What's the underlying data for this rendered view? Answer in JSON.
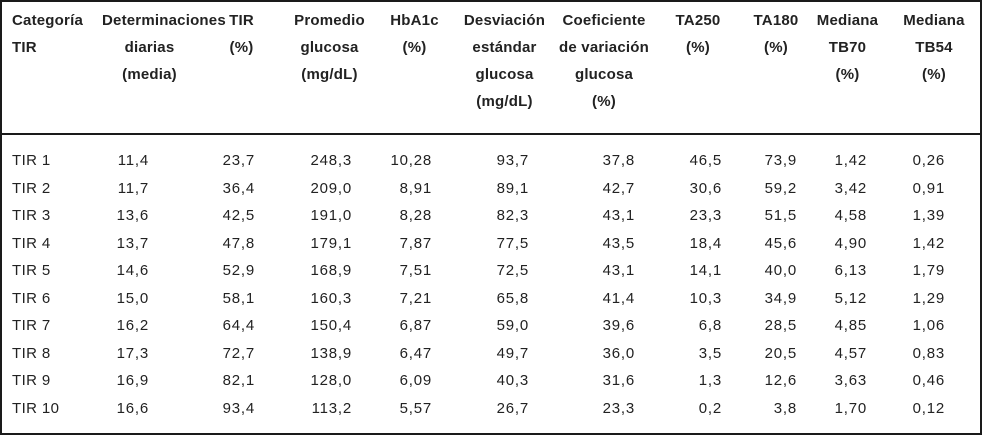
{
  "colors": {
    "text": "#222222",
    "border": "#1a1a1a",
    "background": "#ffffff"
  },
  "table": {
    "columns": [
      {
        "id": "categoria-tir",
        "lines": [
          "Categoría",
          "TIR"
        ]
      },
      {
        "id": "determinaciones-diarias",
        "lines": [
          "Determinaciones",
          "diarias",
          "(media)"
        ]
      },
      {
        "id": "tir-pct",
        "lines": [
          "TIR",
          "(%)"
        ]
      },
      {
        "id": "promedio-glucosa",
        "lines": [
          "Promedio",
          "glucosa",
          "(mg/dL)"
        ]
      },
      {
        "id": "hba1c",
        "lines": [
          "HbA1c",
          "(%)"
        ]
      },
      {
        "id": "desviacion-estandar-glucosa",
        "lines": [
          "Desviación",
          "estándar",
          "glucosa",
          "(mg/dL)"
        ]
      },
      {
        "id": "coeficiente-variacion-glucosa",
        "lines": [
          "Coeficiente",
          "de variación",
          "glucosa",
          "(%)"
        ]
      },
      {
        "id": "ta250",
        "lines": [
          "TA250",
          "(%)"
        ]
      },
      {
        "id": "ta180",
        "lines": [
          "TA180",
          "(%)"
        ]
      },
      {
        "id": "mediana-tb70",
        "lines": [
          "Mediana",
          "TB70",
          "(%)"
        ]
      },
      {
        "id": "mediana-tb54",
        "lines": [
          "Mediana",
          "TB54",
          "(%)"
        ]
      }
    ],
    "rows": [
      {
        "label": "TIR 1",
        "values": [
          "11,4",
          "23,7",
          "248,3",
          "10,28",
          "93,7",
          "37,8",
          "46,5",
          "73,9",
          "1,42",
          "0,26"
        ]
      },
      {
        "label": "TIR 2",
        "values": [
          "11,7",
          "36,4",
          "209,0",
          "8,91",
          "89,1",
          "42,7",
          "30,6",
          "59,2",
          "3,42",
          "0,91"
        ]
      },
      {
        "label": "TIR 3",
        "values": [
          "13,6",
          "42,5",
          "191,0",
          "8,28",
          "82,3",
          "43,1",
          "23,3",
          "51,5",
          "4,58",
          "1,39"
        ]
      },
      {
        "label": "TIR 4",
        "values": [
          "13,7",
          "47,8",
          "179,1",
          "7,87",
          "77,5",
          "43,5",
          "18,4",
          "45,6",
          "4,90",
          "1,42"
        ]
      },
      {
        "label": "TIR 5",
        "values": [
          "14,6",
          "52,9",
          "168,9",
          "7,51",
          "72,5",
          "43,1",
          "14,1",
          "40,0",
          "6,13",
          "1,79"
        ]
      },
      {
        "label": "TIR 6",
        "values": [
          "15,0",
          "58,1",
          "160,3",
          "7,21",
          "65,8",
          "41,4",
          "10,3",
          "34,9",
          "5,12",
          "1,29"
        ]
      },
      {
        "label": "TIR 7",
        "values": [
          "16,2",
          "64,4",
          "150,4",
          "6,87",
          "59,0",
          "39,6",
          "6,8",
          "28,5",
          "4,85",
          "1,06"
        ]
      },
      {
        "label": "TIR 8",
        "values": [
          "17,3",
          "72,7",
          "138,9",
          "6,47",
          "49,7",
          "36,0",
          "3,5",
          "20,5",
          "4,57",
          "0,83"
        ]
      },
      {
        "label": "TIR 9",
        "values": [
          "16,9",
          "82,1",
          "128,0",
          "6,09",
          "40,3",
          "31,6",
          "1,3",
          "12,6",
          "3,63",
          "0,46"
        ]
      },
      {
        "label": "TIR 10",
        "values": [
          "16,6",
          "93,4",
          "113,2",
          "5,57",
          "26,7",
          "23,3",
          "0,2",
          "3,8",
          "1,70",
          "0,12"
        ]
      }
    ]
  },
  "chart_data": {
    "type": "table",
    "decimal_separator_displayed": ",",
    "columns": [
      "Categoría TIR",
      "Determinaciones diarias (media)",
      "TIR (%)",
      "Promedio glucosa (mg/dL)",
      "HbA1c (%)",
      "Desviación estándar glucosa (mg/dL)",
      "Coeficiente de variación glucosa (%)",
      "TA250 (%)",
      "TA180 (%)",
      "Mediana TB70 (%)",
      "Mediana TB54 (%)"
    ],
    "rows": [
      [
        "TIR 1",
        11.4,
        23.7,
        248.3,
        10.28,
        93.7,
        37.8,
        46.5,
        73.9,
        1.42,
        0.26
      ],
      [
        "TIR 2",
        11.7,
        36.4,
        209.0,
        8.91,
        89.1,
        42.7,
        30.6,
        59.2,
        3.42,
        0.91
      ],
      [
        "TIR 3",
        13.6,
        42.5,
        191.0,
        8.28,
        82.3,
        43.1,
        23.3,
        51.5,
        4.58,
        1.39
      ],
      [
        "TIR 4",
        13.7,
        47.8,
        179.1,
        7.87,
        77.5,
        43.5,
        18.4,
        45.6,
        4.9,
        1.42
      ],
      [
        "TIR 5",
        14.6,
        52.9,
        168.9,
        7.51,
        72.5,
        43.1,
        14.1,
        40.0,
        6.13,
        1.79
      ],
      [
        "TIR 6",
        15.0,
        58.1,
        160.3,
        7.21,
        65.8,
        41.4,
        10.3,
        34.9,
        5.12,
        1.29
      ],
      [
        "TIR 7",
        16.2,
        64.4,
        150.4,
        6.87,
        59.0,
        39.6,
        6.8,
        28.5,
        4.85,
        1.06
      ],
      [
        "TIR 8",
        17.3,
        72.7,
        138.9,
        6.47,
        49.7,
        36.0,
        3.5,
        20.5,
        4.57,
        0.83
      ],
      [
        "TIR 9",
        16.9,
        82.1,
        128.0,
        6.09,
        40.3,
        31.6,
        1.3,
        12.6,
        3.63,
        0.46
      ],
      [
        "TIR 10",
        16.6,
        93.4,
        113.2,
        5.57,
        26.7,
        23.3,
        0.2,
        3.8,
        1.7,
        0.12
      ]
    ]
  }
}
